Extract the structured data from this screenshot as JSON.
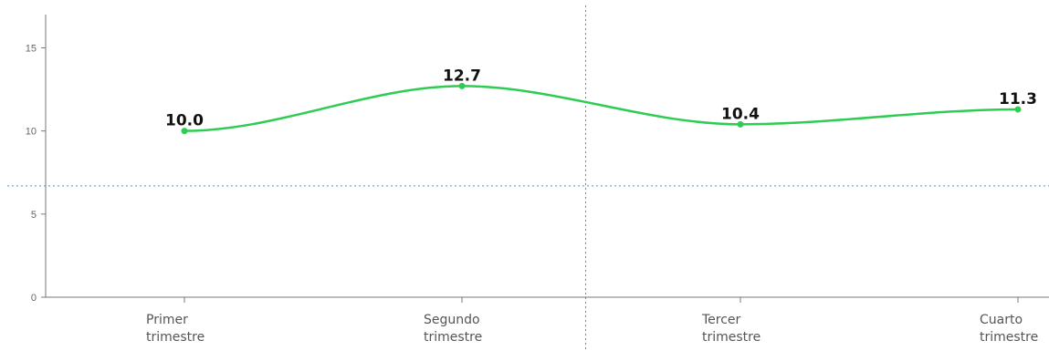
{
  "chart_data": {
    "type": "line",
    "smooth": true,
    "categories": [
      [
        "Primer",
        "trimestre"
      ],
      [
        "Segundo",
        "trimestre"
      ],
      [
        "Tercer",
        "trimestre"
      ],
      [
        "Cuarto",
        "trimestre"
      ]
    ],
    "series": [
      {
        "values": [
          10.0,
          12.7,
          10.4,
          11.3
        ],
        "labels": [
          "10.0",
          "12.7",
          "10.4",
          "11.3"
        ],
        "color": "#2ecc52"
      }
    ],
    "yticks": [
      0,
      5,
      10,
      15
    ],
    "ytick_labels": [
      "0",
      "5",
      "10",
      "15"
    ],
    "ylim": [
      0,
      17
    ],
    "grid": false,
    "legend": "none",
    "title": "",
    "xlabel": "",
    "ylabel": "",
    "crosshair_color": "#4a90d9",
    "crosshair_y_value": 6.7
  }
}
